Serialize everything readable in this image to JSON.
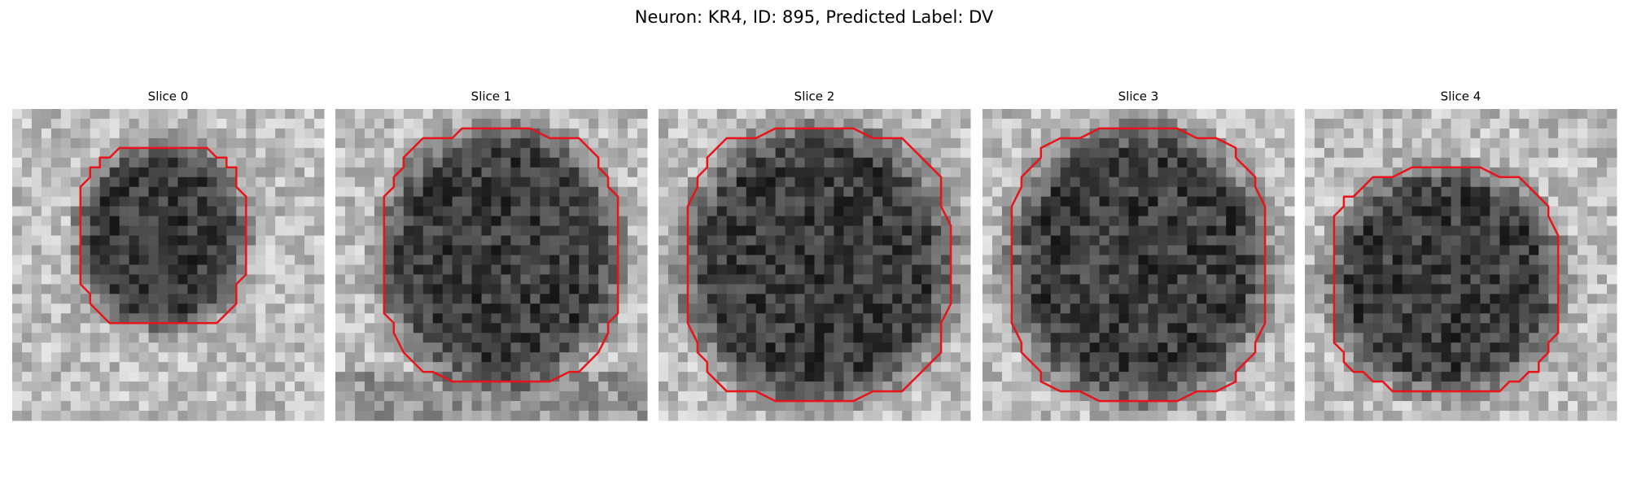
{
  "title": "Neuron: KR4, ID: 895, Predicted Label: DV",
  "panels": [
    {
      "title": "Slice 0"
    },
    {
      "title": "Slice 1"
    },
    {
      "title": "Slice 2"
    },
    {
      "title": "Slice 3"
    },
    {
      "title": "Slice 4"
    }
  ]
}
